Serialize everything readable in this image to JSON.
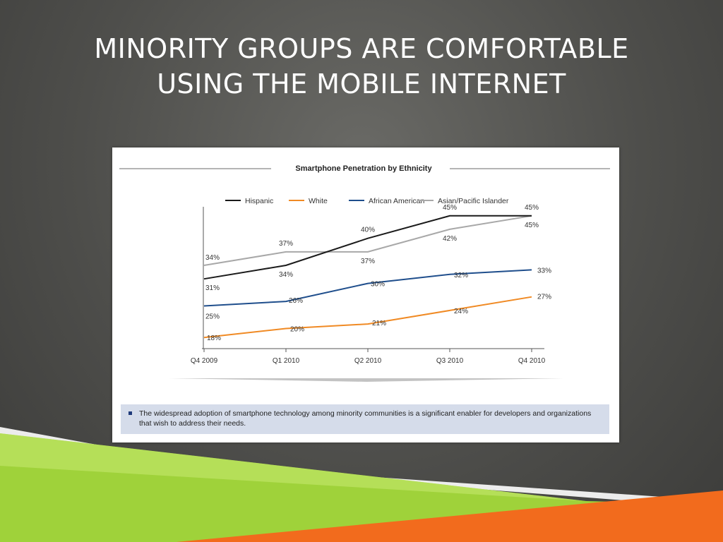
{
  "slide": {
    "title_line1": "MINORITY GROUPS ARE COMFORTABLE",
    "title_line2": "USING THE MOBILE INTERNET"
  },
  "chart_data": {
    "type": "line",
    "title": "Smartphone Penetration by Ethnicity",
    "categories": [
      "Q4 2009",
      "Q1 2010",
      "Q2 2010",
      "Q3 2010",
      "Q4 2010"
    ],
    "series": [
      {
        "name": "Hispanic",
        "color": "#1a1a1a",
        "values": [
          31,
          34,
          40,
          45,
          45
        ]
      },
      {
        "name": "White",
        "color": "#f08a24",
        "values": [
          18,
          20,
          21,
          24,
          27
        ]
      },
      {
        "name": "African American",
        "color": "#1f4e8c",
        "values": [
          25,
          26,
          30,
          32,
          33
        ]
      },
      {
        "name": "Asian/Pacific Islander",
        "color": "#a8a8a8",
        "values": [
          34,
          37,
          37,
          42,
          45
        ]
      }
    ],
    "data_labels": [
      {
        "text": "34%",
        "series": 3,
        "index": 0
      },
      {
        "text": "31%",
        "series": 0,
        "index": 0
      },
      {
        "text": "25%",
        "series": 2,
        "index": 0
      },
      {
        "text": "18%",
        "series": 1,
        "index": 0
      },
      {
        "text": "37%",
        "series": 3,
        "index": 1
      },
      {
        "text": "34%",
        "series": 0,
        "index": 1
      },
      {
        "text": "26%",
        "series": 2,
        "index": 1
      },
      {
        "text": "20%",
        "series": 1,
        "index": 1
      },
      {
        "text": "40%",
        "series": 0,
        "index": 2
      },
      {
        "text": "37%",
        "series": 3,
        "index": 2
      },
      {
        "text": "30%",
        "series": 2,
        "index": 2
      },
      {
        "text": "21%",
        "series": 1,
        "index": 2
      },
      {
        "text": "45%",
        "series": 0,
        "index": 3
      },
      {
        "text": "42%",
        "series": 3,
        "index": 3
      },
      {
        "text": "32%",
        "series": 2,
        "index": 3
      },
      {
        "text": "24%",
        "series": 1,
        "index": 3
      },
      {
        "text": "45%",
        "series": 0,
        "index": 4
      },
      {
        "text": "45%",
        "series": 3,
        "index": 4
      },
      {
        "text": "33%",
        "series": 2,
        "index": 4
      },
      {
        "text": "27%",
        "series": 1,
        "index": 4
      }
    ],
    "legend_position": "top",
    "grid": false,
    "ylim": [
      16,
      47
    ]
  },
  "footnote": {
    "text": "The widespread adoption of smartphone technology among minority communities  is a significant enabler for developers and organizations that wish to address their needs."
  },
  "colors": {
    "green_stripe": "#9fd23a",
    "orange_stripe": "#f26b1d"
  }
}
